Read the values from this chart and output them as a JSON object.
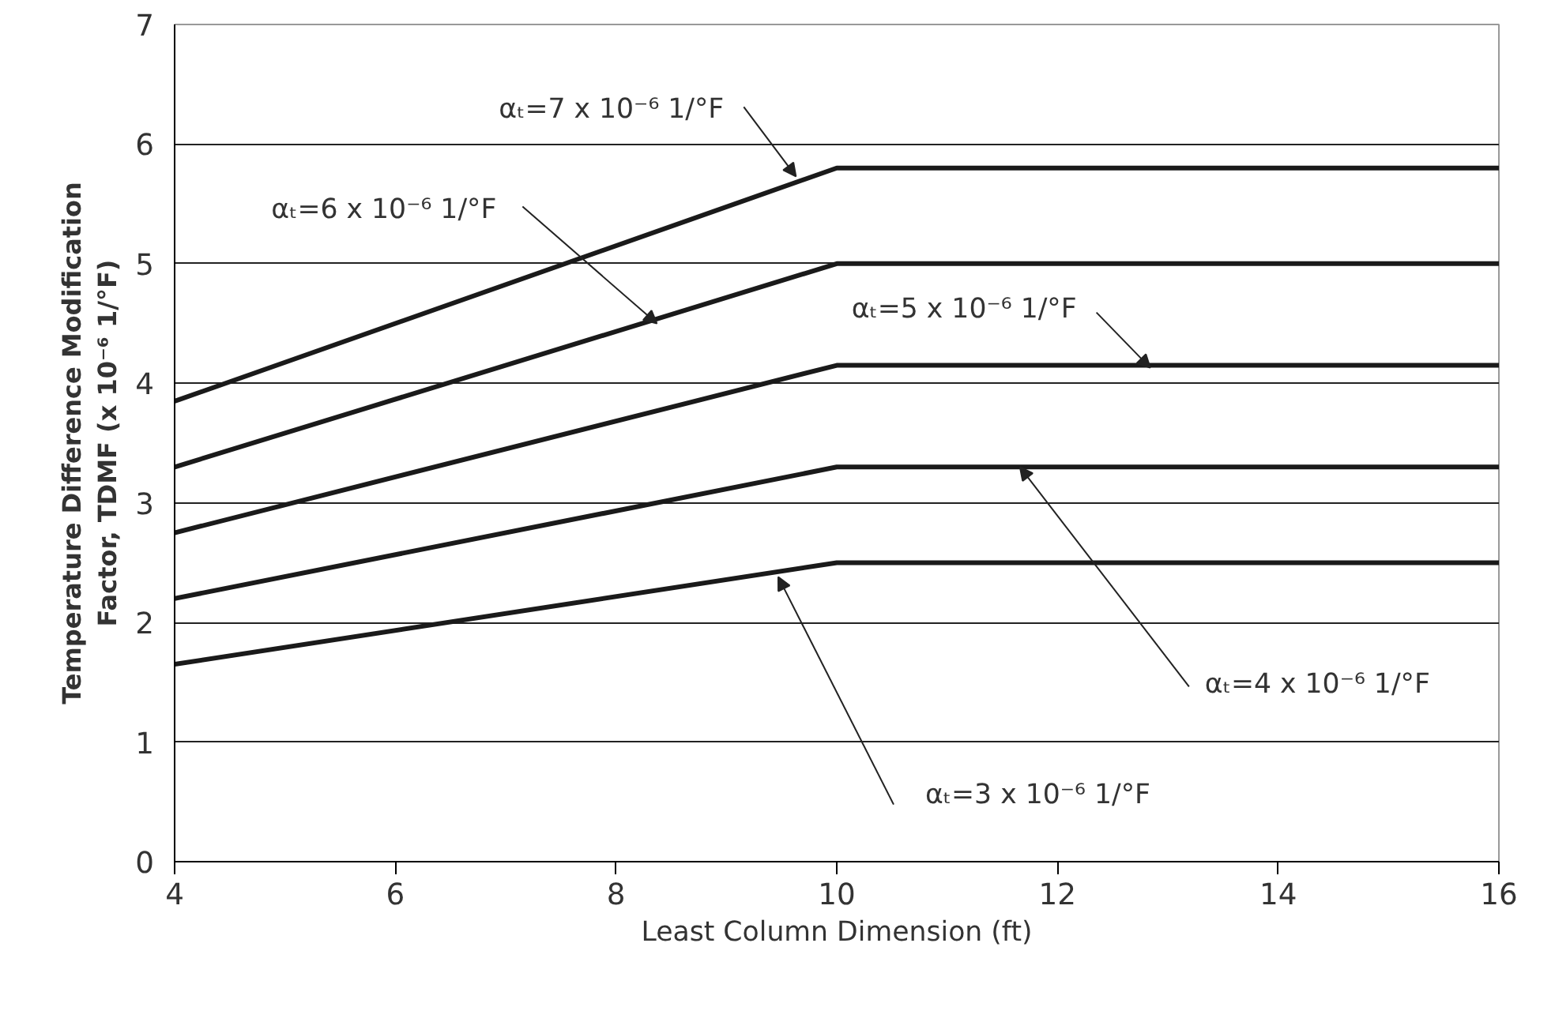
{
  "chart_data": {
    "type": "line",
    "xlabel": "Least Column Dimension (ft)",
    "ylabel": "Temperature Difference Modification\nFactor, TDMF (x 10⁻⁶ 1/°F)",
    "x": [
      4,
      10,
      16
    ],
    "series": [
      {
        "color": "#1a1a1a",
        "values": [
          3.85,
          5.8,
          5.8
        ]
      },
      {
        "color": "#1a1a1a",
        "values": [
          3.3,
          5.0,
          5.0
        ]
      },
      {
        "color": "#1a1a1a",
        "values": [
          2.75,
          4.15,
          4.15
        ]
      },
      {
        "color": "#1a1a1a",
        "values": [
          2.2,
          3.3,
          3.3
        ]
      },
      {
        "color": "#1a1a1a",
        "values": [
          1.65,
          2.5,
          2.5
        ]
      }
    ],
    "annotations": [
      {
        "text": "αₜ=7 x 10⁻⁶ 1/°F",
        "x": 9.63,
        "y": 5.73
      },
      {
        "text": "αₜ=6 x 10⁻⁶ 1/°F",
        "x": 8.37,
        "y": 4.5
      },
      {
        "text": "αₜ=5 x 10⁻⁶ 1/°F",
        "x": 12.84,
        "y": 4.13
      },
      {
        "text": "αₜ=4 x 10⁻⁶ 1/°F",
        "x": 11.66,
        "y": 3.3
      },
      {
        "text": "αₜ=3 x 10⁻⁶ 1/°F",
        "x": 9.47,
        "y": 2.38
      }
    ],
    "xlim": [
      4,
      16
    ],
    "ylim": [
      0,
      7
    ],
    "xticks": [
      4,
      6,
      8,
      10,
      12,
      14,
      16
    ],
    "yticks": [
      0,
      1,
      2,
      3,
      4,
      5,
      6,
      7
    ],
    "grid": "y",
    "marker": "none",
    "line_style": "solid"
  }
}
